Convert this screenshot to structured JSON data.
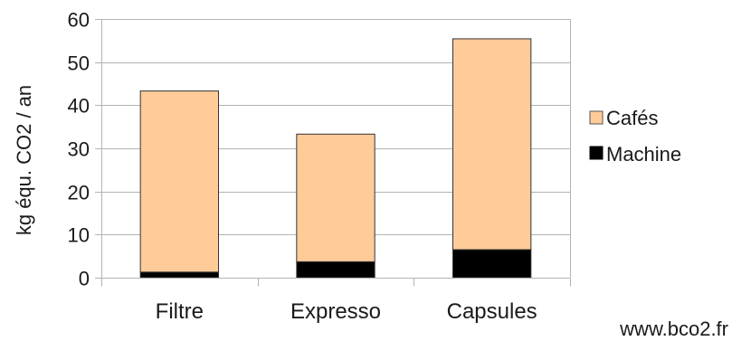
{
  "chart_data": {
    "type": "bar",
    "stacked": true,
    "categories": [
      "Filtre",
      "Expresso",
      "Capsules"
    ],
    "series": [
      {
        "name": "Machine",
        "values": [
          1.3,
          3.7,
          6.5
        ],
        "color": "#000000"
      },
      {
        "name": "Cafés",
        "values": [
          42.0,
          29.6,
          48.9
        ],
        "color": "#ffcc99"
      }
    ],
    "ylabel": "kg équ. CO2 / an",
    "xlabel": "",
    "ylim": [
      0,
      60
    ],
    "yticks": [
      0,
      10,
      20,
      30,
      40,
      50,
      60
    ],
    "grid": true,
    "legend": {
      "placement": "right",
      "items": [
        "Cafés",
        "Machine"
      ]
    }
  },
  "footer": {
    "source": "www.bco2.fr"
  }
}
